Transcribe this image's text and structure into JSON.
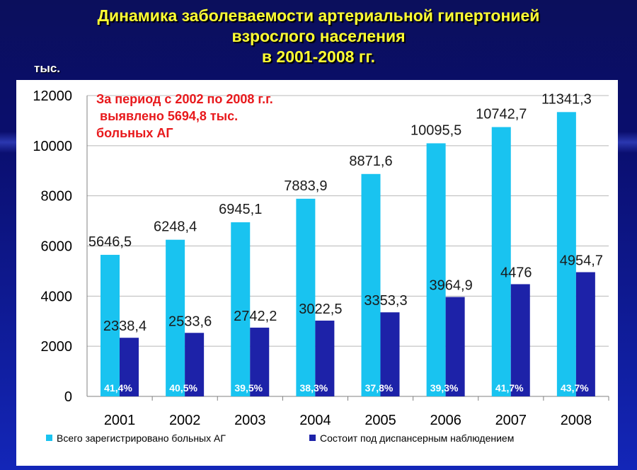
{
  "title": {
    "line1": "Динамика заболеваемости  артериальной гипертонией",
    "line2": "взрослого населения",
    "line3": "в 2001-2008 гг."
  },
  "unit_label": "тыс.",
  "annotation": {
    "line1": "За период с 2002 по 2008 г.г.",
    "line2": " выявлено 5694,8 тыс.",
    "line3": "больных АГ"
  },
  "colors": {
    "series1": "#19c3f0",
    "series2": "#1d22a8",
    "pct_text": "#ffffff",
    "annotation": "#e8191c",
    "title": "#ffff33"
  },
  "chart_data": {
    "type": "bar",
    "categories": [
      "2001",
      "2002",
      "2003",
      "2004",
      "2005",
      "2006",
      "2007",
      "2008"
    ],
    "ylim": [
      0,
      12000
    ],
    "yticks": [
      "0",
      "2000",
      "4000",
      "6000",
      "8000",
      "10000",
      "12000"
    ],
    "grid": true,
    "legend_position": "bottom",
    "series": [
      {
        "name": "Всего зарегистрировано больных АГ",
        "values": [
          5646.5,
          6248.4,
          6945.1,
          7883.9,
          8871.6,
          10095.5,
          10742.7,
          11341.3
        ],
        "labels": [
          "5646,5",
          "6248,4",
          "6945,1",
          "7883,9",
          "8871,6",
          "10095,5",
          "10742,7",
          "11341,3"
        ]
      },
      {
        "name": "Состоит под диспансерным наблюдением",
        "values": [
          2338.4,
          2533.6,
          2742.2,
          3022.5,
          3353.3,
          3964.9,
          4476,
          4954.7
        ],
        "labels": [
          "2338,4",
          "2533,6",
          "2742,2",
          "3022,5",
          "3353,3",
          "3964,9",
          "4476",
          "4954,7"
        ],
        "percent_labels": [
          "41,4%",
          "40,5%",
          "39,5%",
          "38,3%",
          "37,8%",
          "39,3%",
          "41,7%",
          "43,7%"
        ]
      }
    ]
  }
}
